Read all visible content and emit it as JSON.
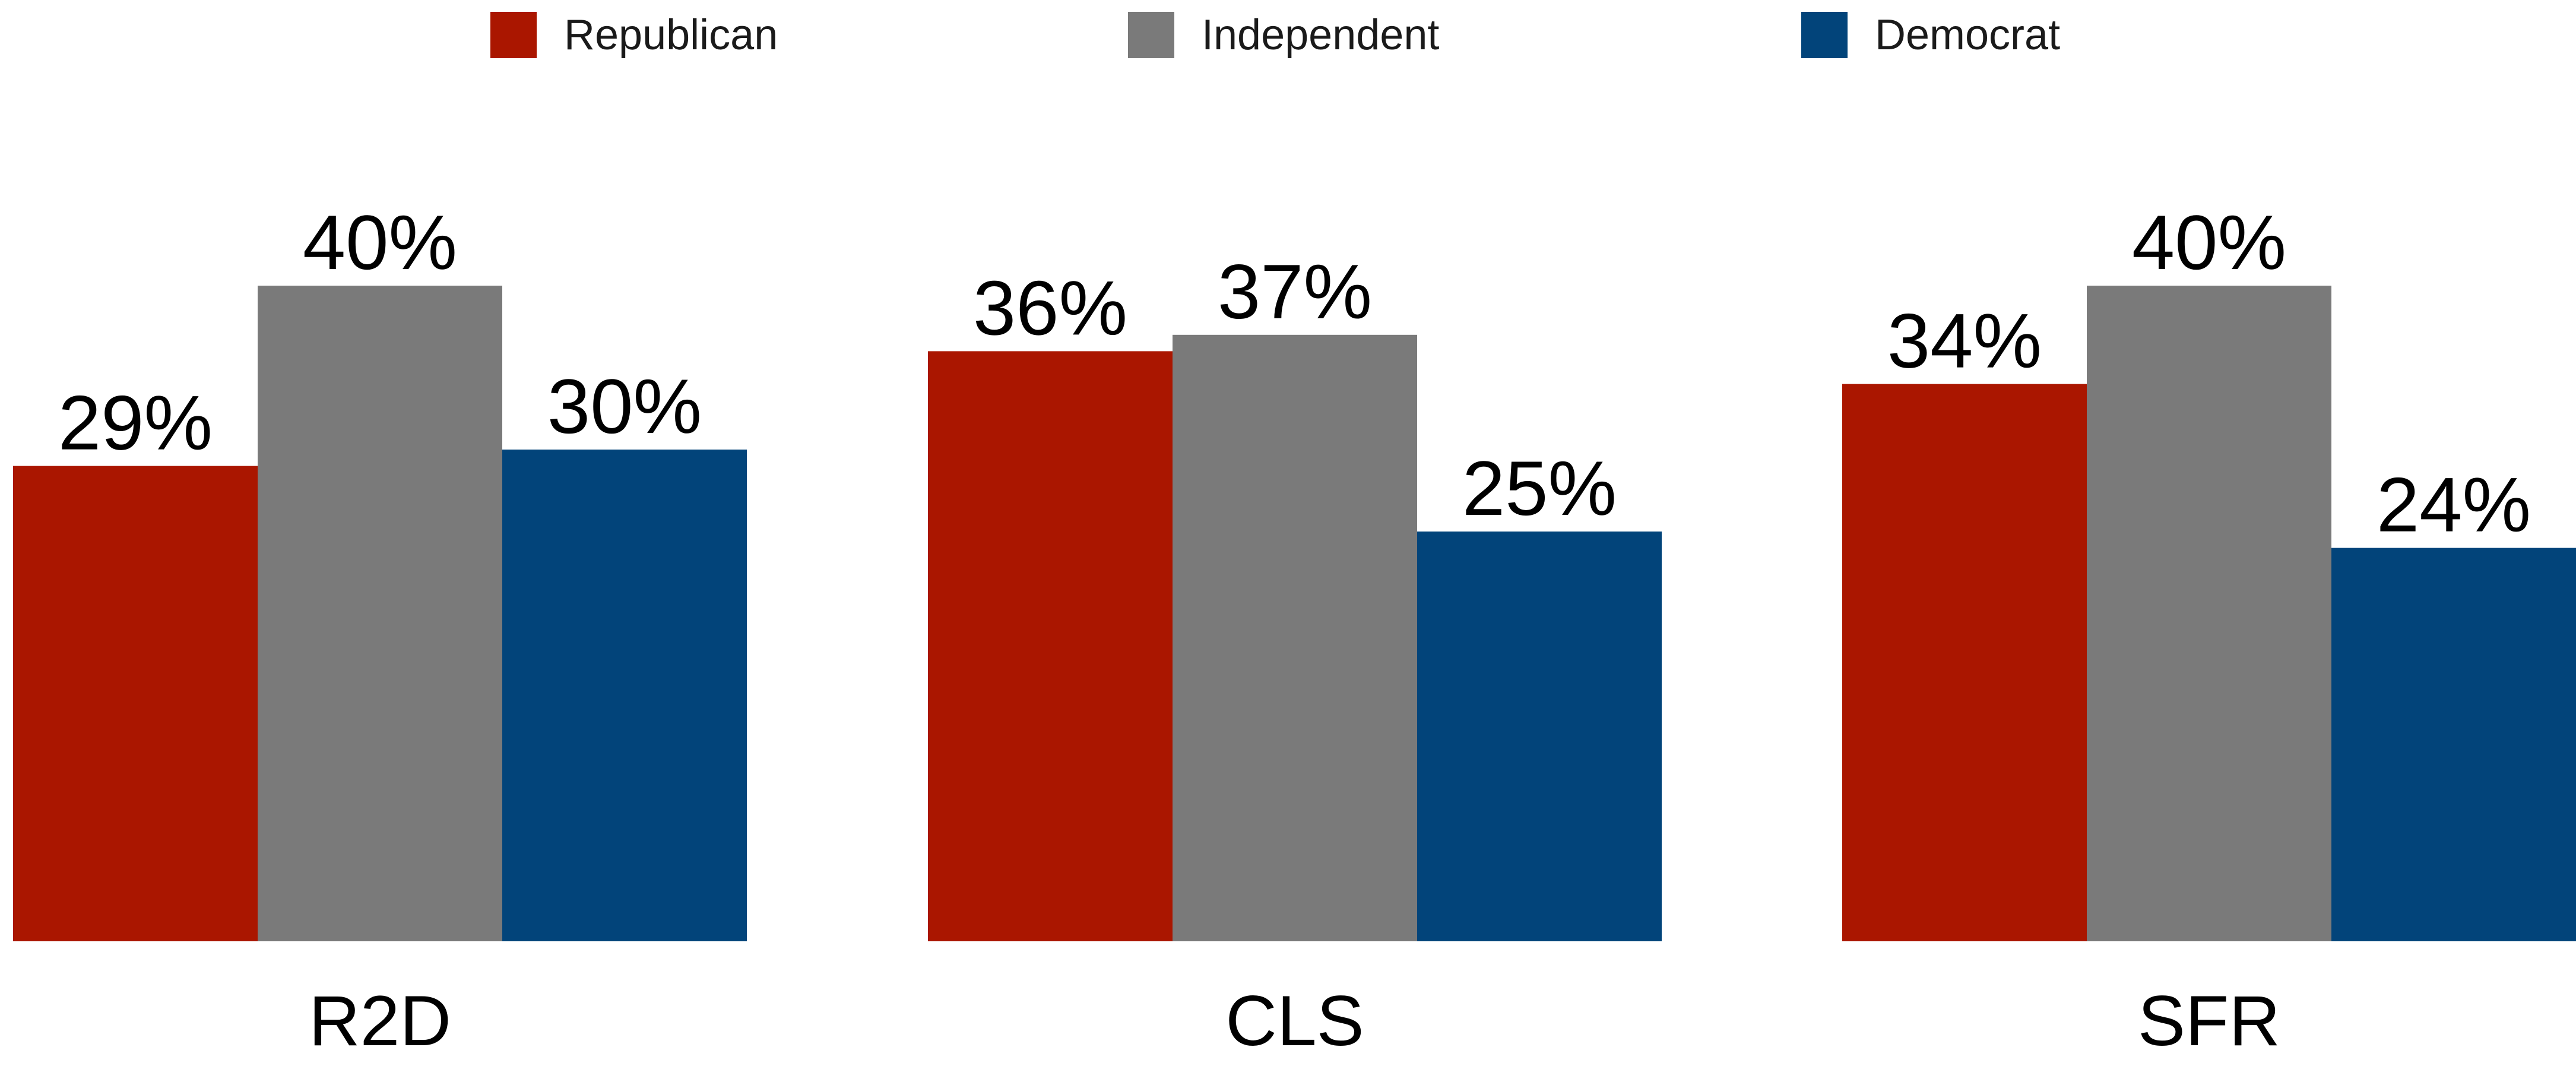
{
  "chart_data": {
    "type": "bar",
    "title": "",
    "xlabel": "",
    "ylabel": "",
    "categories": [
      "R2D",
      "CLS",
      "SFR"
    ],
    "series": [
      {
        "name": "Republican",
        "color": "#aa1600",
        "values": [
          29,
          36,
          34
        ]
      },
      {
        "name": "Independent",
        "color": "#7a7a7a",
        "values": [
          40,
          37,
          40
        ]
      },
      {
        "name": "Democrat",
        "color": "#02447a",
        "values": [
          30,
          25,
          24
        ]
      }
    ],
    "value_suffix": "%",
    "ylim": [
      0,
      40
    ],
    "grid": false,
    "legend_position": "top"
  }
}
